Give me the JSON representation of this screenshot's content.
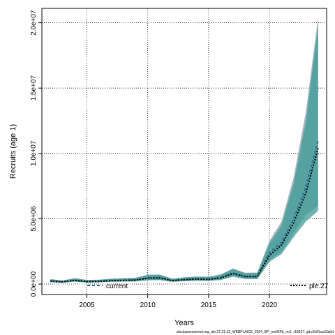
{
  "chart_data": {
    "type": "area",
    "xlabel": "Years",
    "ylabel": "Recruits (age 1)",
    "xlim": [
      2001.3,
      2024.7
    ],
    "ylim": [
      -800000,
      21100000
    ],
    "grid": true,
    "grid_style": "dotted",
    "x_ticks": [
      2005,
      2010,
      2015,
      2020
    ],
    "x_tick_labels": [
      "2005",
      "2010",
      "2015",
      "2020"
    ],
    "y_ticks": [
      0,
      5000000,
      10000000,
      15000000,
      20000000
    ],
    "y_tick_labels": [
      "0.0e+00",
      "5.0e+06",
      "1.0e+07",
      "1.5e+07",
      "2.0e+07"
    ],
    "footnote": "stockassessment.org, ple.27.21-32_WKBPLAICE_2024_BP_nm05Fb_no1, r18527, git:c9c81ac53a0d",
    "x": [
      2002,
      2003,
      2004,
      2005,
      2006,
      2007,
      2008,
      2009,
      2010,
      2011,
      2012,
      2013,
      2014,
      2015,
      2016,
      2017,
      2018,
      2019,
      2020,
      2021,
      2022,
      2023,
      2024
    ],
    "series": [
      {
        "name": "current",
        "color": "#2c6f8a",
        "band_color": "#9aa0ab",
        "line_style": "dashed",
        "values": [
          250000,
          180000,
          300000,
          200000,
          220000,
          280000,
          300000,
          320000,
          480000,
          500000,
          280000,
          350000,
          400000,
          380000,
          500000,
          850000,
          600000,
          600000,
          2400000,
          3200000,
          5000000,
          7500000,
          11000000
        ],
        "lower": [
          150000,
          100000,
          200000,
          120000,
          140000,
          180000,
          200000,
          210000,
          300000,
          320000,
          180000,
          230000,
          270000,
          250000,
          330000,
          600000,
          410000,
          400000,
          1800000,
          2500000,
          3900000,
          5300000,
          6000000
        ],
        "upper": [
          380000,
          280000,
          450000,
          320000,
          340000,
          420000,
          450000,
          480000,
          720000,
          730000,
          420000,
          520000,
          580000,
          560000,
          740000,
          1200000,
          870000,
          880000,
          3300000,
          4800000,
          8200000,
          13200000,
          20400000
        ]
      },
      {
        "name": "ple.27",
        "color": "#000000",
        "band_color": "#3a9e9a",
        "line_style": "dotted",
        "values": [
          230000,
          170000,
          280000,
          190000,
          210000,
          260000,
          280000,
          300000,
          450000,
          470000,
          260000,
          330000,
          380000,
          360000,
          470000,
          800000,
          570000,
          570000,
          2200000,
          3000000,
          4700000,
          7000000,
          10400000
        ],
        "lower": [
          140000,
          95000,
          190000,
          110000,
          130000,
          170000,
          190000,
          200000,
          290000,
          300000,
          170000,
          220000,
          260000,
          240000,
          310000,
          560000,
          390000,
          380000,
          1700000,
          2300000,
          3600000,
          4800000,
          5600000
        ],
        "upper": [
          360000,
          260000,
          430000,
          300000,
          320000,
          400000,
          430000,
          460000,
          690000,
          700000,
          400000,
          500000,
          560000,
          540000,
          710000,
          1150000,
          830000,
          840000,
          3100000,
          4500000,
          7700000,
          12400000,
          19800000
        ]
      }
    ]
  }
}
